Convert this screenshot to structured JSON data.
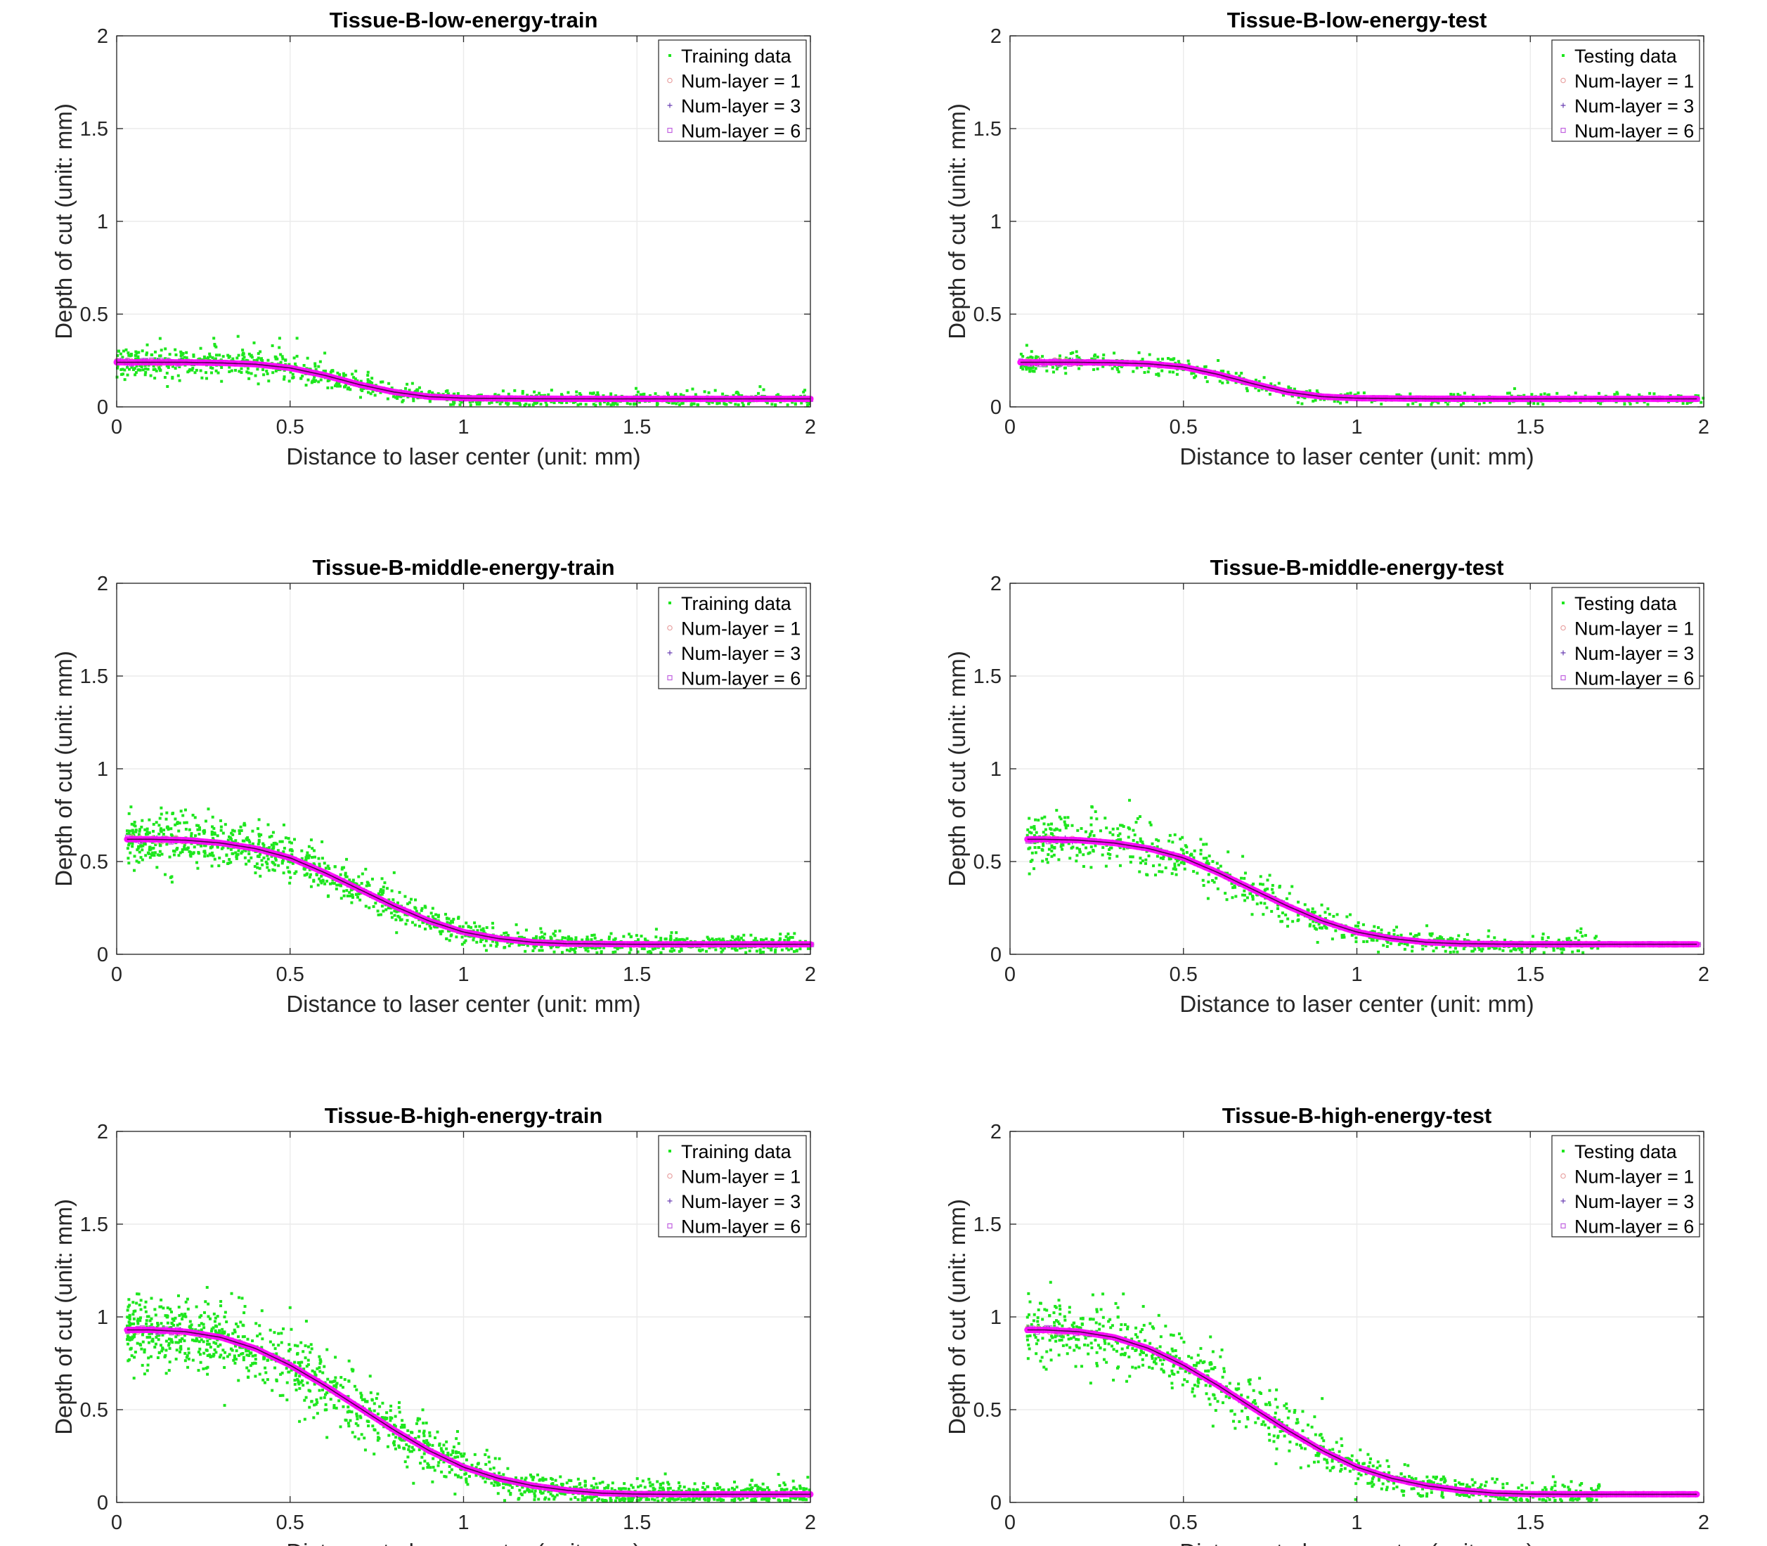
{
  "figure": {
    "layout": "3 rows x 2 columns",
    "series_colors": {
      "data": "#1ee61e",
      "layer1": "#e8a0a0",
      "layer3": "#6a3fb2",
      "layer6": "#c060e0",
      "fit_curve": "#ff00ff",
      "fit_core": "#3a0030"
    }
  },
  "chart_data": [
    {
      "type": "scatter",
      "title": "Tissue-B-low-energy-train",
      "xlabel": "Distance to laser center (unit: mm)",
      "ylabel": "Depth of cut (unit: mm)",
      "xlim": [
        0,
        2
      ],
      "ylim": [
        0,
        2
      ],
      "xticks": [
        0,
        0.5,
        1,
        1.5,
        2
      ],
      "xtick_labels": [
        "0",
        "0.5",
        "1",
        "1.5",
        "2"
      ],
      "yticks": [
        0,
        0.5,
        1,
        1.5,
        2
      ],
      "ytick_labels": [
        "0",
        "0.5",
        "1",
        "1.5",
        "2"
      ],
      "grid": true,
      "legend_position": "top-right",
      "legend": [
        "Training data",
        "Num-layer = 1",
        "Num-layer = 3",
        "Num-layer = 6"
      ],
      "model": {
        "x": [
          0,
          0.1,
          0.2,
          0.3,
          0.4,
          0.5,
          0.6,
          0.7,
          0.8,
          0.9,
          1.0,
          1.2,
          1.5,
          2.0
        ],
        "y": [
          0.24,
          0.24,
          0.24,
          0.237,
          0.23,
          0.21,
          0.17,
          0.12,
          0.08,
          0.055,
          0.047,
          0.044,
          0.043,
          0.043
        ]
      },
      "scatter": {
        "x_range": [
          0.0,
          2.0
        ],
        "count": 900,
        "noise_sd": 0.04,
        "outliers": [
          [
            0.28,
            0.37
          ],
          [
            0.35,
            0.38
          ],
          [
            0.47,
            0.37
          ],
          [
            0.52,
            0.37
          ],
          [
            0.6,
            0.29
          ]
        ]
      },
      "pred_x_range": [
        0.0,
        2.0
      ]
    },
    {
      "type": "scatter",
      "title": "Tissue-B-low-energy-test",
      "xlabel": "Distance to laser center (unit: mm)",
      "ylabel": "Depth of cut (unit: mm)",
      "xlim": [
        0,
        2
      ],
      "ylim": [
        0,
        2
      ],
      "xticks": [
        0,
        0.5,
        1,
        1.5,
        2
      ],
      "xtick_labels": [
        "0",
        "0.5",
        "1",
        "1.5",
        "2"
      ],
      "yticks": [
        0,
        0.5,
        1,
        1.5,
        2
      ],
      "ytick_labels": [
        "0",
        "0.5",
        "1",
        "1.5",
        "2"
      ],
      "grid": true,
      "legend_position": "top-right",
      "legend": [
        "Testing data",
        "Num-layer = 1",
        "Num-layer = 3",
        "Num-layer = 6"
      ],
      "model": {
        "x": [
          0,
          0.1,
          0.2,
          0.3,
          0.4,
          0.5,
          0.6,
          0.7,
          0.8,
          0.9,
          1.0,
          1.2,
          1.5,
          2.0
        ],
        "y": [
          0.24,
          0.24,
          0.24,
          0.238,
          0.232,
          0.215,
          0.175,
          0.125,
          0.08,
          0.055,
          0.047,
          0.044,
          0.043,
          0.043
        ]
      },
      "scatter": {
        "x_range": [
          0.03,
          2.0
        ],
        "count": 500,
        "noise_sd": 0.03,
        "outliers": [
          [
            0.3,
            0.29
          ],
          [
            0.6,
            0.25
          ]
        ]
      },
      "pred_x_range": [
        0.03,
        1.98
      ]
    },
    {
      "type": "scatter",
      "title": "Tissue-B-middle-energy-train",
      "xlabel": "Distance to laser center (unit: mm)",
      "ylabel": "Depth of cut (unit: mm)",
      "xlim": [
        0,
        2
      ],
      "ylim": [
        0,
        2
      ],
      "xticks": [
        0,
        0.5,
        1,
        1.5,
        2
      ],
      "xtick_labels": [
        "0",
        "0.5",
        "1",
        "1.5",
        "2"
      ],
      "yticks": [
        0,
        0.5,
        1,
        1.5,
        2
      ],
      "ytick_labels": [
        "0",
        "0.5",
        "1",
        "1.5",
        "2"
      ],
      "grid": true,
      "legend_position": "top-right",
      "legend": [
        "Training data",
        "Num-layer = 1",
        "Num-layer = 3",
        "Num-layer = 6"
      ],
      "model": {
        "x": [
          0.03,
          0.1,
          0.2,
          0.3,
          0.4,
          0.5,
          0.6,
          0.7,
          0.8,
          0.9,
          1.0,
          1.1,
          1.2,
          1.3,
          1.5,
          2.0
        ],
        "y": [
          0.62,
          0.62,
          0.615,
          0.6,
          0.57,
          0.52,
          0.44,
          0.35,
          0.26,
          0.18,
          0.12,
          0.085,
          0.065,
          0.057,
          0.054,
          0.054
        ]
      },
      "scatter": {
        "x_range": [
          0.03,
          2.0
        ],
        "count": 1200,
        "noise_sd": 0.045,
        "outliers": [
          [
            0.22,
            0.75
          ],
          [
            0.3,
            0.72
          ],
          [
            0.8,
            0.44
          ]
        ]
      },
      "pred_x_range": [
        0.03,
        2.0
      ]
    },
    {
      "type": "scatter",
      "title": "Tissue-B-middle-energy-test",
      "xlabel": "Distance to laser center (unit: mm)",
      "ylabel": "Depth of cut (unit: mm)",
      "xlim": [
        0,
        2
      ],
      "ylim": [
        0,
        2
      ],
      "xticks": [
        0,
        0.5,
        1,
        1.5,
        2
      ],
      "xtick_labels": [
        "0",
        "0.5",
        "1",
        "1.5",
        "2"
      ],
      "yticks": [
        0,
        0.5,
        1,
        1.5,
        2
      ],
      "ytick_labels": [
        "0",
        "0.5",
        "1",
        "1.5",
        "2"
      ],
      "grid": true,
      "legend_position": "top-right",
      "legend": [
        "Testing data",
        "Num-layer = 1",
        "Num-layer = 3",
        "Num-layer = 6"
      ],
      "model": {
        "x": [
          0.05,
          0.1,
          0.2,
          0.3,
          0.4,
          0.5,
          0.6,
          0.7,
          0.8,
          0.9,
          1.0,
          1.1,
          1.2,
          1.3,
          1.5,
          2.0
        ],
        "y": [
          0.62,
          0.62,
          0.615,
          0.6,
          0.57,
          0.52,
          0.44,
          0.35,
          0.26,
          0.18,
          0.12,
          0.085,
          0.065,
          0.057,
          0.054,
          0.054
        ]
      },
      "scatter": {
        "x_range": [
          0.05,
          1.7
        ],
        "count": 700,
        "noise_sd": 0.05,
        "outliers": [
          [
            0.1,
            0.74
          ],
          [
            0.25,
            0.73
          ],
          [
            0.55,
            0.62
          ]
        ]
      },
      "pred_x_range": [
        0.05,
        1.98
      ]
    },
    {
      "type": "scatter",
      "title": "Tissue-B-high-energy-train",
      "xlabel": "Distance to laser center (unit: mm)",
      "ylabel": "Depth of cut (unit: mm)",
      "xlim": [
        0,
        2
      ],
      "ylim": [
        0,
        2
      ],
      "xticks": [
        0,
        0.5,
        1,
        1.5,
        2
      ],
      "xtick_labels": [
        "0",
        "0.5",
        "1",
        "1.5",
        "2"
      ],
      "yticks": [
        0,
        0.5,
        1,
        1.5,
        2
      ],
      "ytick_labels": [
        "0",
        "0.5",
        "1",
        "1.5",
        "2"
      ],
      "grid": true,
      "legend_position": "top-right",
      "legend": [
        "Training data",
        "Num-layer = 1",
        "Num-layer = 3",
        "Num-layer = 6"
      ],
      "model": {
        "x": [
          0.03,
          0.1,
          0.2,
          0.3,
          0.4,
          0.5,
          0.6,
          0.7,
          0.8,
          0.9,
          1.0,
          1.1,
          1.2,
          1.3,
          1.4,
          1.5,
          1.6,
          2.0
        ],
        "y": [
          0.93,
          0.93,
          0.92,
          0.89,
          0.83,
          0.74,
          0.63,
          0.51,
          0.39,
          0.28,
          0.19,
          0.13,
          0.09,
          0.065,
          0.05,
          0.045,
          0.044,
          0.044
        ]
      },
      "scatter": {
        "x_range": [
          0.03,
          2.0
        ],
        "count": 1400,
        "noise_sd": 0.065,
        "outliers": [
          [
            0.05,
            0.67
          ],
          [
            0.07,
            1.04
          ],
          [
            0.2,
            1.08
          ],
          [
            0.3,
            1.06
          ],
          [
            0.5,
            1.05
          ],
          [
            0.25,
            0.72
          ],
          [
            0.4,
            0.68
          ]
        ]
      },
      "pred_x_range": [
        0.03,
        2.0
      ]
    },
    {
      "type": "scatter",
      "title": "Tissue-B-high-energy-test",
      "xlabel": "Distance to laser center (unit: mm)",
      "ylabel": "Depth of cut (unit: mm)",
      "xlim": [
        0,
        2
      ],
      "ylim": [
        0,
        2
      ],
      "xticks": [
        0,
        0.5,
        1,
        1.5,
        2
      ],
      "xtick_labels": [
        "0",
        "0.5",
        "1",
        "1.5",
        "2"
      ],
      "yticks": [
        0,
        0.5,
        1,
        1.5,
        2
      ],
      "ytick_labels": [
        "0",
        "0.5",
        "1",
        "1.5",
        "2"
      ],
      "grid": true,
      "legend_position": "top-right",
      "legend": [
        "Testing data",
        "Num-layer = 1",
        "Num-layer = 3",
        "Num-layer = 6"
      ],
      "model": {
        "x": [
          0.05,
          0.1,
          0.2,
          0.3,
          0.4,
          0.5,
          0.6,
          0.7,
          0.8,
          0.9,
          1.0,
          1.1,
          1.2,
          1.3,
          1.4,
          1.5,
          1.6,
          2.0
        ],
        "y": [
          0.93,
          0.93,
          0.92,
          0.89,
          0.83,
          0.74,
          0.63,
          0.51,
          0.39,
          0.28,
          0.19,
          0.13,
          0.09,
          0.065,
          0.05,
          0.045,
          0.044,
          0.044
        ]
      },
      "scatter": {
        "x_range": [
          0.05,
          1.7
        ],
        "count": 800,
        "noise_sd": 0.06,
        "outliers": [
          [
            0.1,
            1.04
          ],
          [
            0.25,
            1.04
          ],
          [
            0.55,
            0.83
          ],
          [
            0.9,
            0.56
          ]
        ]
      },
      "pred_x_range": [
        0.05,
        1.98
      ]
    }
  ]
}
